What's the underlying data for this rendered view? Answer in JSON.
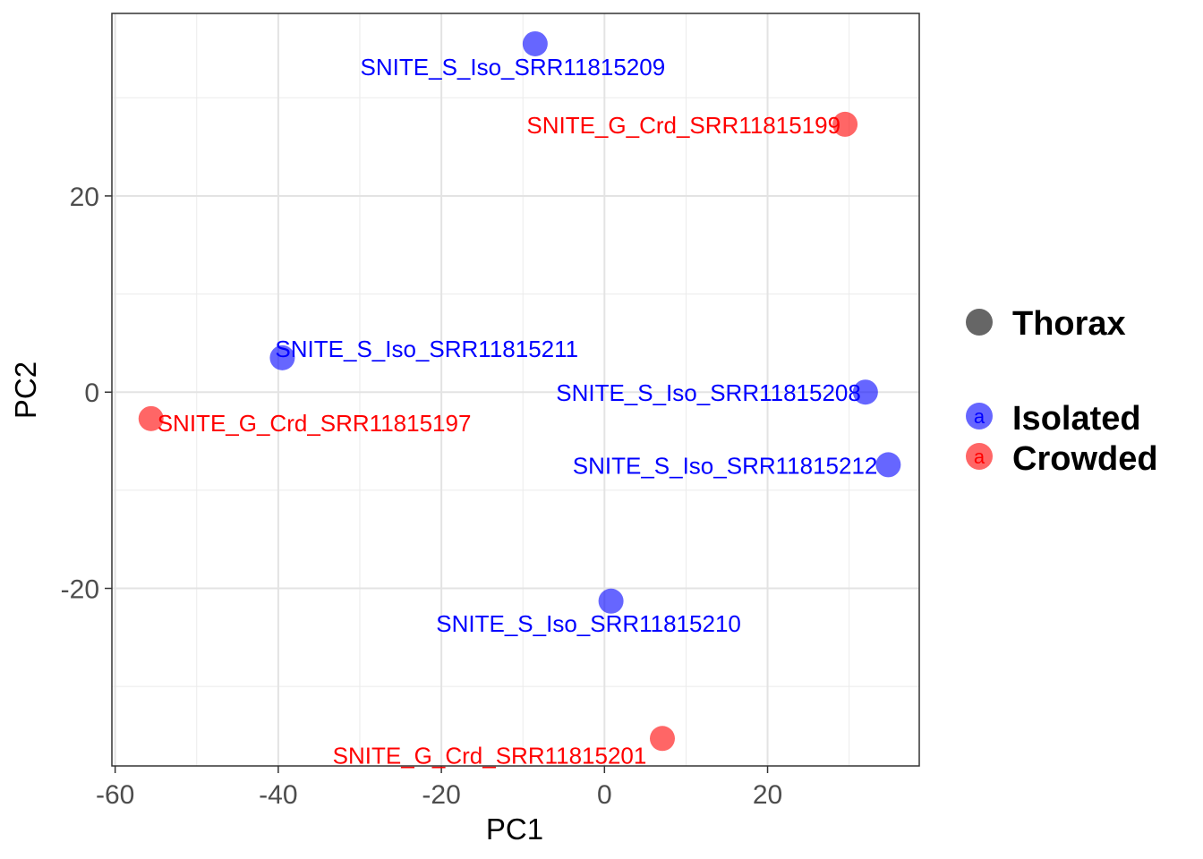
{
  "chart_data": {
    "type": "scatter",
    "title": "",
    "xlabel": "PC1",
    "ylabel": "PC2",
    "xlim": [
      -60.4,
      38.6
    ],
    "ylim": [
      -38.1,
      38.6
    ],
    "x_ticks": [
      -60,
      -40,
      -20,
      0,
      20
    ],
    "y_ticks": [
      -20,
      0,
      20
    ],
    "grid": true,
    "legend_position": "right",
    "legend": {
      "shape_title": "Thorax",
      "groups": [
        {
          "name": "Isolated",
          "color": "#0000ff"
        },
        {
          "name": "Crowded",
          "color": "#ff0000"
        }
      ],
      "key_glyph": "a"
    },
    "series": [
      {
        "name": "Isolated",
        "color": "#0000ff",
        "points": [
          {
            "x": -8.5,
            "y": 35.5,
            "label": "SNITE_S_Iso_SRR11815209"
          },
          {
            "x": -39.5,
            "y": 3.5,
            "label": "SNITE_S_Iso_SRR11815211"
          },
          {
            "x": 32.0,
            "y": 0.0,
            "label": "SNITE_S_Iso_SRR11815208"
          },
          {
            "x": 34.8,
            "y": -7.4,
            "label": "SNITE_S_Iso_SRR11815212"
          },
          {
            "x": 0.8,
            "y": -21.3,
            "label": "SNITE_S_Iso_SRR11815210"
          }
        ]
      },
      {
        "name": "Crowded",
        "color": "#ff0000",
        "points": [
          {
            "x": 29.5,
            "y": 27.3,
            "label": "SNITE_G_Crd_SRR11815199"
          },
          {
            "x": -55.6,
            "y": -2.7,
            "label": "SNITE_G_Crd_SRR11815197"
          },
          {
            "x": 7.1,
            "y": -35.3,
            "label": "SNITE_G_Crd_SRR11815201"
          }
        ]
      }
    ]
  }
}
